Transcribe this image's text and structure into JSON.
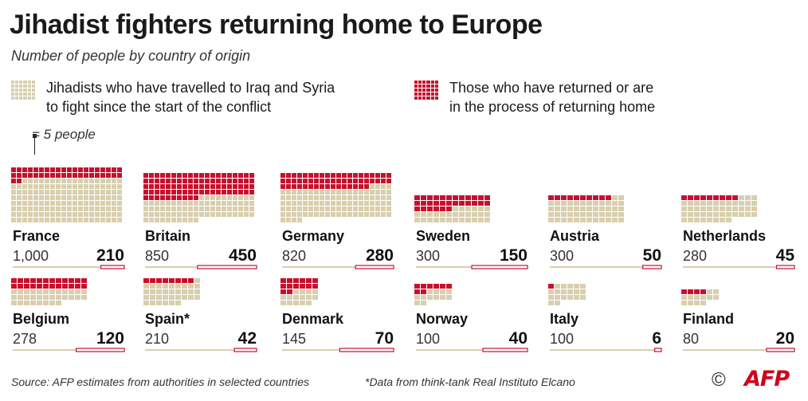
{
  "title": "Jihadist fighters returning home to Europe",
  "subtitle": "Number of people by country of origin",
  "legend": {
    "travelled_line1": "Jihadists who have travelled to Iraq and Syria",
    "travelled_line2": "to fight since the start of the conflict",
    "returned_line1": "Those who have returned or are",
    "returned_line2": "in the process of returning home",
    "scale": "= 5 people"
  },
  "colors": {
    "travelled": "#d9cfae",
    "returned": "#c8102e",
    "bar_outline": "#c8102e",
    "axis_line": "#d9cfae"
  },
  "chart_data": {
    "type": "waffle",
    "unit": 5,
    "units_label": "people",
    "series": [
      {
        "name": "Jihadists who have travelled to Iraq and Syria to fight since the start of the conflict",
        "key": "travelled"
      },
      {
        "name": "Those who have returned or are in the process of returning home",
        "key": "returned"
      }
    ],
    "countries": [
      {
        "name": "France",
        "travelled": 1000,
        "travelled_label": "1,000",
        "returned": 210,
        "returned_label": "210"
      },
      {
        "name": "Britain",
        "travelled": 850,
        "travelled_label": "850",
        "returned": 450,
        "returned_label": "450"
      },
      {
        "name": "Germany",
        "travelled": 820,
        "travelled_label": "820",
        "returned": 280,
        "returned_label": "280"
      },
      {
        "name": "Sweden",
        "travelled": 300,
        "travelled_label": "300",
        "returned": 150,
        "returned_label": "150"
      },
      {
        "name": "Austria",
        "travelled": 300,
        "travelled_label": "300",
        "returned": 50,
        "returned_label": "50"
      },
      {
        "name": "Netherlands",
        "travelled": 280,
        "travelled_label": "280",
        "returned": 45,
        "returned_label": "45"
      },
      {
        "name": "Belgium",
        "travelled": 278,
        "travelled_label": "278",
        "returned": 120,
        "returned_label": "120"
      },
      {
        "name": "Spain*",
        "travelled": 210,
        "travelled_label": "210",
        "returned": 42,
        "returned_label": "42"
      },
      {
        "name": "Denmark",
        "travelled": 145,
        "travelled_label": "145",
        "returned": 70,
        "returned_label": "70"
      },
      {
        "name": "Norway",
        "travelled": 100,
        "travelled_label": "100",
        "returned": 40,
        "returned_label": "40"
      },
      {
        "name": "Italy",
        "travelled": 100,
        "travelled_label": "100",
        "returned": 6,
        "returned_label": "6"
      },
      {
        "name": "Finland",
        "travelled": 80,
        "travelled_label": "80",
        "returned": 20,
        "returned_label": "20"
      }
    ]
  },
  "footer": {
    "source": "Source: AFP estimates from authorities in selected countries",
    "note": "*Data from think-tank Real Instituto Elcano",
    "copyright": "©",
    "logo": "AFP"
  }
}
